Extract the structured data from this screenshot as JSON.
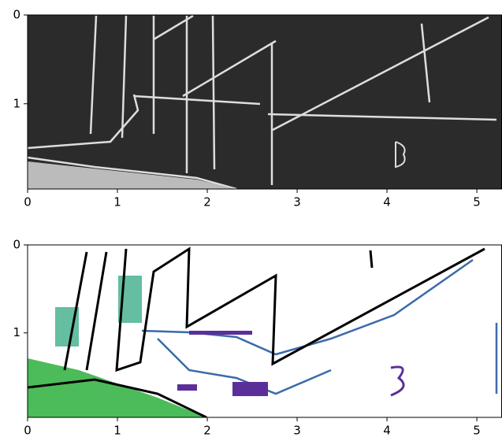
{
  "chart_data": [
    {
      "type": "image",
      "xlim": [
        0,
        5.28
      ],
      "ylim": [
        1.96,
        0
      ],
      "xticks": [
        0,
        1,
        2,
        3,
        4,
        5
      ],
      "yticks": [
        0,
        1
      ]
    },
    {
      "type": "image",
      "xlim": [
        0,
        5.28
      ],
      "ylim": [
        1.96,
        0
      ],
      "xticks": [
        0,
        1,
        2,
        3,
        4,
        5
      ],
      "yticks": [
        0,
        1
      ]
    }
  ]
}
